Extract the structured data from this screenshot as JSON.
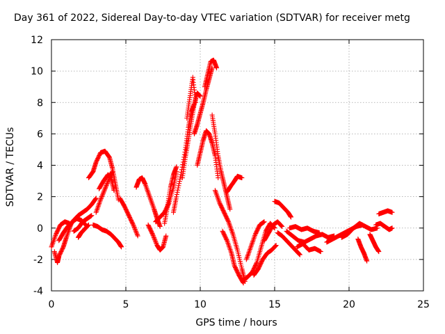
{
  "chart_data": {
    "type": "scatter",
    "title": "Day 361 of 2022, Sidereal Day-to-day VTEC variation (SDTVAR) for receiver metg",
    "xlabel": "GPS time / hours",
    "ylabel": "SDTVAR / TECUs",
    "xlim": [
      0,
      25
    ],
    "ylim": [
      -4,
      12
    ],
    "xticks": [
      0,
      5,
      10,
      15,
      20,
      25
    ],
    "yticks": [
      -4,
      -2,
      0,
      2,
      4,
      6,
      8,
      10,
      12
    ],
    "grid": true,
    "marker": "+",
    "color": "#ff0000",
    "series": [
      {
        "name": "SDTVAR",
        "x": [],
        "y": []
      }
    ],
    "trace_segments": [
      {
        "x": [
          0.0,
          0.3,
          0.6,
          0.9,
          1.2
        ],
        "y": [
          -1.2,
          -0.4,
          0.2,
          0.4,
          0.3
        ]
      },
      {
        "x": [
          0.2,
          0.4,
          0.5,
          0.8,
          1.0,
          1.3
        ],
        "y": [
          -1.5,
          -2.2,
          -1.8,
          -1.2,
          -0.6,
          0.2
        ]
      },
      {
        "x": [
          0.5,
          0.8,
          1.1,
          1.4,
          1.7,
          2.0,
          2.3
        ],
        "y": [
          -0.8,
          -0.3,
          0.1,
          0.4,
          0.6,
          0.5,
          0.2
        ]
      },
      {
        "x": [
          1.2,
          1.5,
          1.8,
          2.1,
          2.4,
          2.7,
          3.0
        ],
        "y": [
          0.1,
          0.5,
          0.8,
          1.0,
          1.2,
          1.5,
          1.9
        ]
      },
      {
        "x": [
          1.5,
          1.8,
          2.1,
          2.4,
          2.7
        ],
        "y": [
          -0.2,
          0.0,
          0.4,
          0.6,
          0.8
        ]
      },
      {
        "x": [
          1.8,
          2.0,
          2.2,
          2.5
        ],
        "y": [
          -0.6,
          -0.3,
          -0.1,
          0.2
        ]
      },
      {
        "x": [
          2.5,
          2.8,
          3.0,
          3.3,
          3.6,
          3.9,
          4.1,
          4.3,
          4.5
        ],
        "y": [
          3.2,
          3.6,
          4.2,
          4.8,
          4.9,
          4.5,
          3.8,
          2.8,
          1.8
        ]
      },
      {
        "x": [
          3.2,
          3.5,
          3.8,
          4.0,
          4.2
        ],
        "y": [
          2.5,
          3.0,
          3.4,
          3.2,
          2.4
        ]
      },
      {
        "x": [
          2.8,
          3.1,
          3.4,
          3.7,
          4.0,
          4.3,
          4.5,
          4.7
        ],
        "y": [
          0.2,
          0.1,
          -0.1,
          -0.2,
          -0.4,
          -0.7,
          -0.9,
          -1.2
        ]
      },
      {
        "x": [
          3.0,
          3.3,
          3.6,
          3.9,
          4.1
        ],
        "y": [
          1.0,
          1.8,
          2.5,
          3.2,
          3.6
        ]
      },
      {
        "x": [
          4.6,
          4.9,
          5.2,
          5.5,
          5.8
        ],
        "y": [
          1.9,
          1.4,
          0.8,
          0.2,
          -0.5
        ]
      },
      {
        "x": [
          5.7,
          5.9,
          6.1,
          6.3,
          6.6,
          6.9,
          7.1,
          7.3
        ],
        "y": [
          2.6,
          3.1,
          3.2,
          2.8,
          2.0,
          1.2,
          0.6,
          0.1
        ]
      },
      {
        "x": [
          6.5,
          6.8,
          7.1,
          7.3,
          7.5,
          7.7
        ],
        "y": [
          0.2,
          -0.4,
          -1.1,
          -1.4,
          -1.2,
          -0.5
        ]
      },
      {
        "x": [
          7.0,
          7.3,
          7.6,
          7.9,
          8.2,
          8.4
        ],
        "y": [
          0.4,
          0.7,
          1.0,
          1.6,
          2.6,
          3.6
        ]
      },
      {
        "x": [
          7.6,
          7.8,
          8.0,
          8.2,
          8.4
        ],
        "y": [
          0.3,
          1.4,
          2.6,
          3.4,
          3.9
        ]
      },
      {
        "x": [
          8.2,
          8.4,
          8.7,
          9.0,
          9.2,
          9.4,
          9.6
        ],
        "y": [
          1.0,
          2.0,
          3.4,
          5.0,
          6.4,
          7.4,
          7.9
        ]
      },
      {
        "x": [
          8.8,
          9.0,
          9.2,
          9.4,
          9.6,
          9.8,
          10.0
        ],
        "y": [
          3.2,
          4.5,
          5.6,
          6.8,
          7.9,
          8.6,
          8.4
        ]
      },
      {
        "x": [
          9.1,
          9.3,
          9.5,
          9.7
        ],
        "y": [
          7.0,
          8.3,
          9.6,
          8.0
        ]
      },
      {
        "x": [
          9.6,
          9.8,
          10.0,
          10.2,
          10.4,
          10.6,
          10.8
        ],
        "y": [
          6.0,
          6.6,
          7.3,
          8.0,
          8.8,
          9.5,
          10.2
        ]
      },
      {
        "x": [
          10.3,
          10.5,
          10.7,
          10.9,
          11.1
        ],
        "y": [
          9.0,
          9.8,
          10.6,
          10.7,
          10.2
        ]
      },
      {
        "x": [
          9.8,
          10.0,
          10.2,
          10.4,
          10.6,
          10.8,
          11.0,
          11.2
        ],
        "y": [
          4.0,
          4.8,
          5.6,
          6.2,
          6.0,
          5.4,
          4.6,
          3.2
        ]
      },
      {
        "x": [
          10.8,
          11.0,
          11.2,
          11.4,
          11.6,
          11.8,
          12.0
        ],
        "y": [
          7.2,
          6.0,
          4.6,
          3.6,
          2.8,
          2.0,
          1.2
        ]
      },
      {
        "x": [
          11.0,
          11.3,
          11.6,
          11.9,
          12.2,
          12.5,
          12.8,
          13.0
        ],
        "y": [
          2.4,
          1.6,
          1.0,
          0.4,
          -0.4,
          -1.4,
          -2.6,
          -3.4
        ]
      },
      {
        "x": [
          11.5,
          11.8,
          12.1,
          12.3,
          12.6,
          12.9
        ],
        "y": [
          -0.2,
          -0.8,
          -1.6,
          -2.4,
          -3.0,
          -3.5
        ]
      },
      {
        "x": [
          11.8,
          12.0,
          12.3,
          12.5,
          12.8
        ],
        "y": [
          2.3,
          2.6,
          3.0,
          3.3,
          3.2
        ]
      },
      {
        "x": [
          12.9,
          13.2,
          13.5,
          13.8,
          14.1,
          14.4,
          14.7,
          15.0
        ],
        "y": [
          -3.3,
          -3.1,
          -2.8,
          -2.2,
          -1.2,
          -0.2,
          0.3,
          0.0
        ]
      },
      {
        "x": [
          13.1,
          13.4,
          13.7,
          14.0,
          14.3
        ],
        "y": [
          -2.0,
          -1.2,
          -0.4,
          0.2,
          0.4
        ]
      },
      {
        "x": [
          13.6,
          13.9,
          14.2,
          14.5,
          14.8,
          15.1
        ],
        "y": [
          -3.0,
          -2.6,
          -2.0,
          -1.6,
          -1.4,
          -1.1
        ]
      },
      {
        "x": [
          14.3,
          14.6,
          14.9,
          15.2,
          15.5
        ],
        "y": [
          -0.8,
          -0.3,
          0.2,
          0.4,
          0.1
        ]
      },
      {
        "x": [
          15.0,
          15.3,
          15.6,
          15.9,
          16.1
        ],
        "y": [
          1.7,
          1.6,
          1.3,
          1.0,
          0.7
        ]
      },
      {
        "x": [
          15.2,
          15.5,
          15.8,
          16.1,
          16.4,
          16.7
        ],
        "y": [
          -0.3,
          -0.5,
          -0.8,
          -1.1,
          -1.4,
          -1.7
        ]
      },
      {
        "x": [
          15.8,
          16.2,
          16.6,
          17.0,
          17.4,
          17.8,
          18.2,
          18.6,
          19.0
        ],
        "y": [
          -0.2,
          -0.5,
          -0.8,
          -0.9,
          -0.7,
          -0.5,
          -0.4,
          -0.6,
          -0.5
        ]
      },
      {
        "x": [
          16.5,
          16.9,
          17.3,
          17.7,
          18.1
        ],
        "y": [
          -1.2,
          -1.0,
          -1.4,
          -1.3,
          -1.5
        ]
      },
      {
        "x": [
          16.0,
          16.4,
          16.8,
          17.2,
          17.6,
          18.0
        ],
        "y": [
          0.0,
          0.1,
          -0.1,
          0.0,
          -0.2,
          -0.3
        ]
      },
      {
        "x": [
          18.5,
          18.9,
          19.3,
          19.7,
          20.1,
          20.5,
          20.9
        ],
        "y": [
          -0.9,
          -0.7,
          -0.5,
          -0.3,
          -0.1,
          0.1,
          0.2
        ]
      },
      {
        "x": [
          19.5,
          19.9,
          20.3,
          20.7,
          21.1,
          21.5,
          21.9
        ],
        "y": [
          -0.6,
          -0.4,
          0.0,
          0.3,
          0.1,
          -0.1,
          0.0
        ]
      },
      {
        "x": [
          20.6,
          20.8,
          21.0,
          21.2
        ],
        "y": [
          -0.7,
          -1.2,
          -1.6,
          -2.1
        ]
      },
      {
        "x": [
          21.4,
          21.6,
          21.8,
          22.0
        ],
        "y": [
          -0.4,
          -0.8,
          -1.2,
          -1.5
        ]
      },
      {
        "x": [
          21.8,
          22.1,
          22.4,
          22.7,
          22.9
        ],
        "y": [
          0.2,
          0.3,
          0.1,
          -0.1,
          0.0
        ]
      },
      {
        "x": [
          22.0,
          22.3,
          22.6,
          22.9
        ],
        "y": [
          0.9,
          1.0,
          1.1,
          1.0
        ]
      }
    ]
  }
}
